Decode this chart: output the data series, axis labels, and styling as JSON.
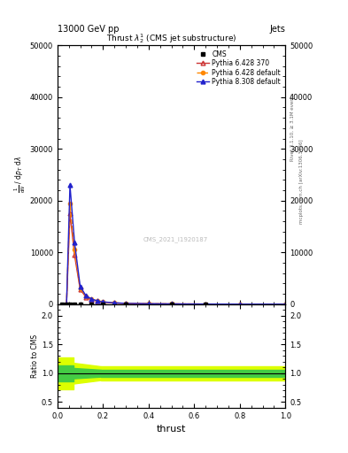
{
  "title_top": "13000 GeV pp",
  "title_right": "Jets",
  "plot_title": "Thrust $\\lambda_{2}^{1}$ (CMS jet substructure)",
  "watermark": "CMS_2021_I1920187",
  "right_label_top": "Rivet 3.1.10, ≥ 3.1M events",
  "right_label_bot": "mcplots.cern.ch [arXiv:1306.3436]",
  "xlabel": "thrust",
  "ylabel_ratio": "Ratio to CMS",
  "xlim": [
    0,
    1
  ],
  "ylim_main": [
    0,
    50000
  ],
  "ylim_ratio": [
    0.4,
    2.2
  ],
  "yticks_main": [
    0,
    10000,
    20000,
    30000,
    40000,
    50000
  ],
  "yticks_main_labels": [
    "0",
    "10000",
    "20000",
    "30000",
    "40000",
    "50000"
  ],
  "yticks_ratio": [
    0.5,
    1.0,
    1.5,
    2.0
  ],
  "thrust_x": [
    0.04,
    0.055,
    0.075,
    0.1,
    0.125,
    0.15,
    0.175,
    0.2,
    0.25,
    0.3,
    0.4,
    0.5,
    0.65,
    0.8,
    1.0
  ],
  "py6_370_y": [
    0,
    17500,
    9500,
    2800,
    1400,
    850,
    580,
    380,
    230,
    130,
    75,
    45,
    18,
    5,
    0
  ],
  "py6_def_y": [
    0,
    19500,
    10500,
    3100,
    1550,
    920,
    620,
    410,
    250,
    145,
    82,
    50,
    20,
    5,
    0
  ],
  "py8_def_y": [
    0,
    23000,
    12000,
    3400,
    1650,
    980,
    660,
    440,
    265,
    155,
    87,
    53,
    22,
    6,
    0
  ],
  "cms_x": [
    0.02,
    0.04,
    0.055,
    0.075,
    0.1,
    0.15,
    0.2,
    0.3,
    0.5,
    0.65
  ],
  "cms_y": [
    0,
    0,
    0,
    0,
    0,
    0,
    0,
    0,
    0,
    15
  ],
  "color_py6_370": "#cc3333",
  "color_py6_def": "#ff8800",
  "color_py8_def": "#2222cc",
  "color_cms": "#000000",
  "bg_color": "#ffffff",
  "ylabel_lines": [
    "mathrm d$^2$N",
    "mathrm d $p_T$ mathrm d $\\lambda$"
  ]
}
